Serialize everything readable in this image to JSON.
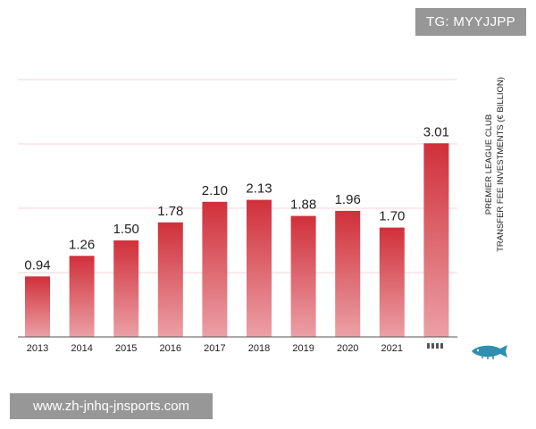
{
  "watermarks": {
    "top": "TG: MYYJJPP",
    "bottom": "www.zh-jnhq-jnsports.com"
  },
  "chart_data": {
    "type": "bar",
    "title": "",
    "xlabel": "",
    "ylabel_lines": [
      "PREMIER LEAGUE CLUB",
      "TRANSFER FEE INVESTMENTS (€ BILLION)"
    ],
    "categories": [
      "2013",
      "2014",
      "2015",
      "2016",
      "2017",
      "2018",
      "2019",
      "2020",
      "2021",
      ""
    ],
    "values": [
      0.94,
      1.26,
      1.5,
      1.78,
      2.1,
      2.13,
      1.88,
      1.96,
      1.7,
      3.01
    ],
    "value_labels": [
      "0.94",
      "1.26",
      "1.50",
      "1.78",
      "2.10",
      "2.13",
      "1.88",
      "1.96",
      "1.70",
      "3.01"
    ],
    "ylim": [
      0,
      4
    ],
    "grid": true,
    "legend": "none",
    "colors": {
      "bar_top": "#d0303a",
      "bar_bottom": "#eba0a6",
      "grid": "#f6dcdf",
      "axis": "#555555"
    }
  }
}
